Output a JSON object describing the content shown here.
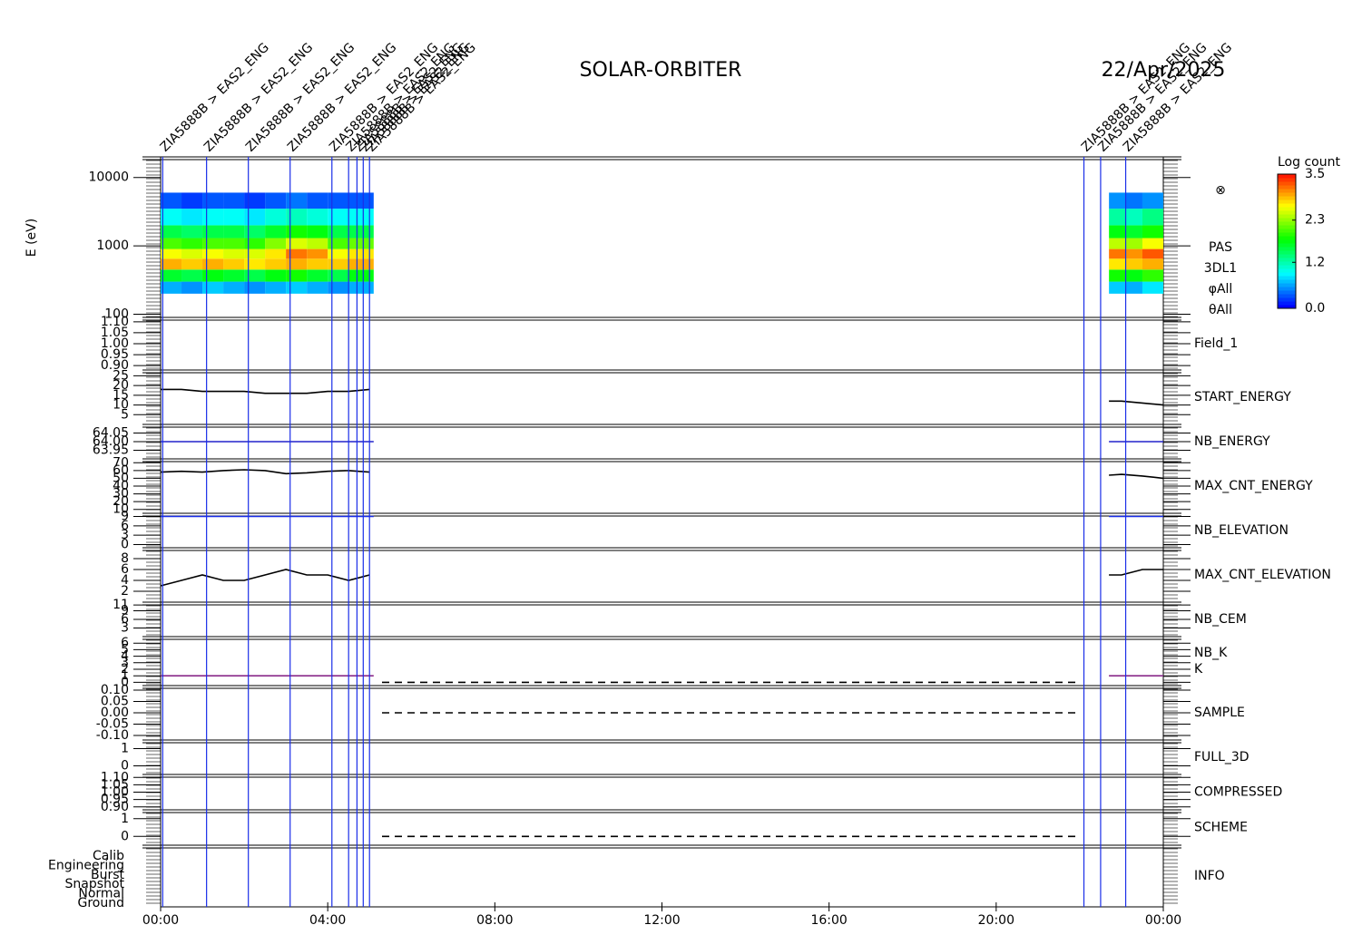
{
  "title": "SOLAR-ORBITER",
  "date": "22/Apr/2025",
  "time_axis": {
    "xlim": [
      0,
      24
    ],
    "xticks": [
      {
        "value": 0,
        "label": "00:00"
      },
      {
        "value": 4,
        "label": "04:00"
      },
      {
        "value": 8,
        "label": "08:00"
      },
      {
        "value": 12,
        "label": "12:00"
      },
      {
        "value": 16,
        "label": "16:00"
      },
      {
        "value": 20,
        "label": "20:00"
      },
      {
        "value": 24,
        "label": "00:00"
      }
    ]
  },
  "events": [
    {
      "x": 0.05,
      "label": "ZIA5888B > EAS2_ENG"
    },
    {
      "x": 1.1,
      "label": "ZIA5888B > EAS2_ENG"
    },
    {
      "x": 2.1,
      "label": "ZIA5888B > EAS2_ENG"
    },
    {
      "x": 3.1,
      "label": "ZIA5888B > EAS2_ENG"
    },
    {
      "x": 4.1,
      "label": "ZIA5888B > EAS2_ENG"
    },
    {
      "x": 4.5,
      "label": "ZIA5888B > EAS2_ENG"
    },
    {
      "x": 4.7,
      "label": "ZIA5888B > EAS2_ENG"
    },
    {
      "x": 4.85,
      "label": "ZIA5888B > EAS2_ENG"
    },
    {
      "x": 5.0,
      "label": "ZIA5888B > EAS2_ENG"
    },
    {
      "x": 22.1,
      "label": "ZIA5888B > EAS2_ENG"
    },
    {
      "x": 22.5,
      "label": "ZIA5888B > EAS2_ENG"
    },
    {
      "x": 23.1,
      "label": "ZIA5888B > EAS2_ENG"
    }
  ],
  "event_color": "#1a2ee8",
  "chart_data": [
    {
      "type": "spectrogram",
      "ylabel": "E (eV)",
      "log": true,
      "ylim": [
        90,
        20000
      ],
      "yticks": [
        100,
        1000,
        10000
      ],
      "symbol": "⊗",
      "labels": [
        {
          "text": "PAS",
          "color": "#000000"
        },
        {
          "text": "3DL1",
          "color": "#000000"
        },
        {
          "text": "φAll",
          "color": "#000000"
        },
        {
          "text": "θAll",
          "color": "#000000"
        }
      ],
      "x_bins": [
        0,
        0.5,
        1,
        1.5,
        2,
        2.5,
        3,
        3.5,
        4,
        4.5,
        5.1,
        22.7,
        23.1,
        23.5,
        24
      ],
      "y_bins": [
        200,
        300,
        450,
        650,
        900,
        1300,
        2000,
        3500,
        6000
      ],
      "values": [
        [
          0.6,
          0.5,
          0.7,
          0.6,
          0.5,
          0.6,
          0.7,
          0.6,
          0.5,
          0.6,
          null,
          0.7,
          0.6,
          0.8
        ],
        [
          1.6,
          1.5,
          1.7,
          1.6,
          1.5,
          1.7,
          1.8,
          1.6,
          1.5,
          1.7,
          null,
          1.8,
          1.7,
          1.9
        ],
        [
          2.9,
          2.8,
          2.9,
          2.8,
          2.7,
          2.8,
          2.9,
          2.8,
          2.8,
          2.9,
          null,
          2.7,
          2.8,
          2.9
        ],
        [
          2.6,
          2.5,
          2.6,
          2.5,
          2.5,
          2.7,
          3.1,
          3.0,
          2.6,
          2.7,
          null,
          3.1,
          3.0,
          3.2
        ],
        [
          2.0,
          1.9,
          2.0,
          2.0,
          1.9,
          2.2,
          2.5,
          2.4,
          2.0,
          2.1,
          null,
          2.4,
          2.3,
          2.6
        ],
        [
          1.5,
          1.4,
          1.5,
          1.5,
          1.4,
          1.6,
          1.8,
          1.7,
          1.5,
          1.5,
          null,
          1.7,
          1.6,
          1.8
        ],
        [
          0.9,
          0.8,
          0.9,
          0.9,
          0.8,
          1.0,
          1.1,
          1.0,
          0.9,
          0.9,
          null,
          1.2,
          1.1,
          1.3
        ],
        [
          0.3,
          0.2,
          0.3,
          0.3,
          0.2,
          0.3,
          0.4,
          0.3,
          0.3,
          0.3,
          null,
          0.5,
          0.4,
          0.5
        ]
      ],
      "colorbar": {
        "label": "Log count",
        "clim": [
          0,
          3.5
        ],
        "ticks": [
          {
            "value": 0,
            "label": "0.0"
          },
          {
            "value": 1.2,
            "label": "1.2"
          },
          {
            "value": 2.3,
            "label": "2.3"
          },
          {
            "value": 3.5,
            "label": "3.5"
          }
        ]
      }
    },
    {
      "type": "line",
      "labels": [
        {
          "text": "Field_1",
          "color": "#2222cc"
        }
      ],
      "ylim": [
        0.88,
        1.12
      ],
      "yticks": [
        {
          "value": 0.9,
          "label": "0.90"
        },
        {
          "value": 0.95,
          "label": "0.95"
        },
        {
          "value": 1.0,
          "label": "1.00"
        },
        {
          "value": 1.05,
          "label": "1.05"
        },
        {
          "value": 1.1,
          "label": "1.10"
        }
      ],
      "series": []
    },
    {
      "type": "line",
      "labels": [
        {
          "text": "START_ENERGY",
          "color": "#000000"
        }
      ],
      "ylim": [
        0,
        28
      ],
      "yticks": [
        5,
        10,
        15,
        20,
        25
      ],
      "series": [
        {
          "color": "#000000",
          "x": [
            0,
            0.5,
            1,
            1.5,
            2,
            2.5,
            3,
            3.5,
            4,
            4.5,
            5,
            13,
            22.7,
            23,
            23.5,
            24
          ],
          "values": [
            18,
            18,
            17,
            17,
            17,
            16,
            16,
            16,
            17,
            17,
            18,
            null,
            12,
            12,
            11,
            10
          ]
        }
      ]
    },
    {
      "type": "line",
      "labels": [
        {
          "text": "NB_ENERGY",
          "color": "#2222cc"
        }
      ],
      "ylim": [
        63.9,
        64.1
      ],
      "yticks": [
        {
          "value": 63.95,
          "label": "63.95"
        },
        {
          "value": 64,
          "label": "64.00"
        },
        {
          "value": 64.05,
          "label": "64.05"
        }
      ],
      "series": [
        {
          "color": "#2222cc",
          "x": [
            0,
            5.1,
            13,
            22.7,
            24
          ],
          "values": [
            64,
            64,
            null,
            64,
            64
          ]
        }
      ]
    },
    {
      "type": "line",
      "labels": [
        {
          "text": "MAX_CNT_ENERGY",
          "color": "#000000"
        }
      ],
      "ylim": [
        5,
        75
      ],
      "yticks": [
        10,
        20,
        30,
        40,
        50,
        60,
        70
      ],
      "series": [
        {
          "color": "#000000",
          "x": [
            0,
            0.5,
            1,
            1.5,
            2,
            2.5,
            3,
            3.5,
            4,
            4.5,
            5,
            13,
            22.7,
            23,
            23.5,
            24
          ],
          "values": [
            58,
            59,
            58,
            60,
            61,
            60,
            56,
            57,
            59,
            60,
            58,
            null,
            54,
            55,
            53,
            50
          ]
        }
      ]
    },
    {
      "type": "line",
      "labels": [
        {
          "text": "NB_ELEVATION",
          "color": "#2222cc"
        }
      ],
      "ylim": [
        -1,
        10
      ],
      "yticks": [
        0,
        3,
        6,
        9
      ],
      "series": [
        {
          "color": "#1a2ee8",
          "x": [
            0,
            5.1,
            13,
            22.7,
            24
          ],
          "values": [
            9,
            9,
            null,
            9,
            9
          ]
        }
      ]
    },
    {
      "type": "line",
      "labels": [
        {
          "text": "MAX_CNT_ELEVATION",
          "color": "#000000"
        }
      ],
      "ylim": [
        0,
        10
      ],
      "yticks": [
        2,
        4,
        6,
        8
      ],
      "series": [
        {
          "color": "#000000",
          "x": [
            0,
            0.5,
            1,
            1.5,
            2,
            2.5,
            3,
            3.5,
            4,
            4.5,
            5,
            13,
            22.7,
            23,
            23.5,
            24
          ],
          "values": [
            3,
            4,
            5,
            4,
            4,
            5,
            6,
            5,
            5,
            4,
            5,
            null,
            5,
            5,
            6,
            6
          ]
        }
      ]
    },
    {
      "type": "line",
      "labels": [
        {
          "text": "NB_CEM",
          "color": "#2222cc"
        }
      ],
      "ylim": [
        0,
        12
      ],
      "yticks": [
        3,
        6,
        9,
        11
      ],
      "series": []
    },
    {
      "type": "line",
      "labels": [
        {
          "text": "NB_K",
          "color": "#cc2222"
        },
        {
          "text": "K",
          "color": "#2222cc"
        }
      ],
      "ylim": [
        -0.5,
        7
      ],
      "yticks": [
        0,
        1,
        2,
        3,
        4,
        5,
        6
      ],
      "series": [
        {
          "color": "#8a2a8a",
          "x": [
            0,
            5.1,
            13,
            22.7,
            24
          ],
          "values": [
            1,
            1,
            null,
            1,
            1
          ]
        },
        {
          "color": "#000000",
          "dash": true,
          "x": [
            5.3,
            22
          ],
          "values": [
            0,
            0
          ]
        }
      ]
    },
    {
      "type": "line",
      "labels": [
        {
          "text": "SAMPLE",
          "color": "#2222cc"
        }
      ],
      "ylim": [
        -0.12,
        0.12
      ],
      "yticks": [
        {
          "value": -0.1,
          "label": "-0.10"
        },
        {
          "value": -0.05,
          "label": "-0.05"
        },
        {
          "value": 0,
          "label": "0.00"
        },
        {
          "value": 0.05,
          "label": "0.05"
        },
        {
          "value": 0.1,
          "label": "0.10"
        }
      ],
      "series": [
        {
          "color": "#000000",
          "dash": true,
          "x": [
            5.3,
            22
          ],
          "values": [
            0,
            0
          ]
        }
      ]
    },
    {
      "type": "line",
      "labels": [
        {
          "text": "FULL_3D",
          "color": "#2222cc"
        }
      ],
      "ylim": [
        -0.5,
        1.5
      ],
      "yticks": [
        0,
        1
      ],
      "series": []
    },
    {
      "type": "line",
      "labels": [
        {
          "text": "COMPRESSED",
          "color": "#000000"
        }
      ],
      "ylim": [
        0.88,
        1.12
      ],
      "yticks": [
        {
          "value": 0.9,
          "label": "0.90"
        },
        {
          "value": 0.95,
          "label": "0.95"
        },
        {
          "value": 1.0,
          "label": "1.00"
        },
        {
          "value": 1.05,
          "label": "1.05"
        },
        {
          "value": 1.1,
          "label": "1.10"
        }
      ],
      "series": []
    },
    {
      "type": "line",
      "labels": [
        {
          "text": "SCHEME",
          "color": "#000000"
        }
      ],
      "ylim": [
        -0.5,
        1.5
      ],
      "yticks": [
        0,
        1
      ],
      "series": [
        {
          "color": "#000000",
          "dash": true,
          "x": [
            5.3,
            22
          ],
          "values": [
            0,
            0
          ]
        }
      ]
    },
    {
      "type": "categorical",
      "labels": [
        {
          "text": "INFO",
          "color": "#000000"
        }
      ],
      "categories": [
        "Calib",
        "Engineering",
        "Burst",
        "Snapshot",
        "Normal",
        "Ground"
      ]
    }
  ]
}
